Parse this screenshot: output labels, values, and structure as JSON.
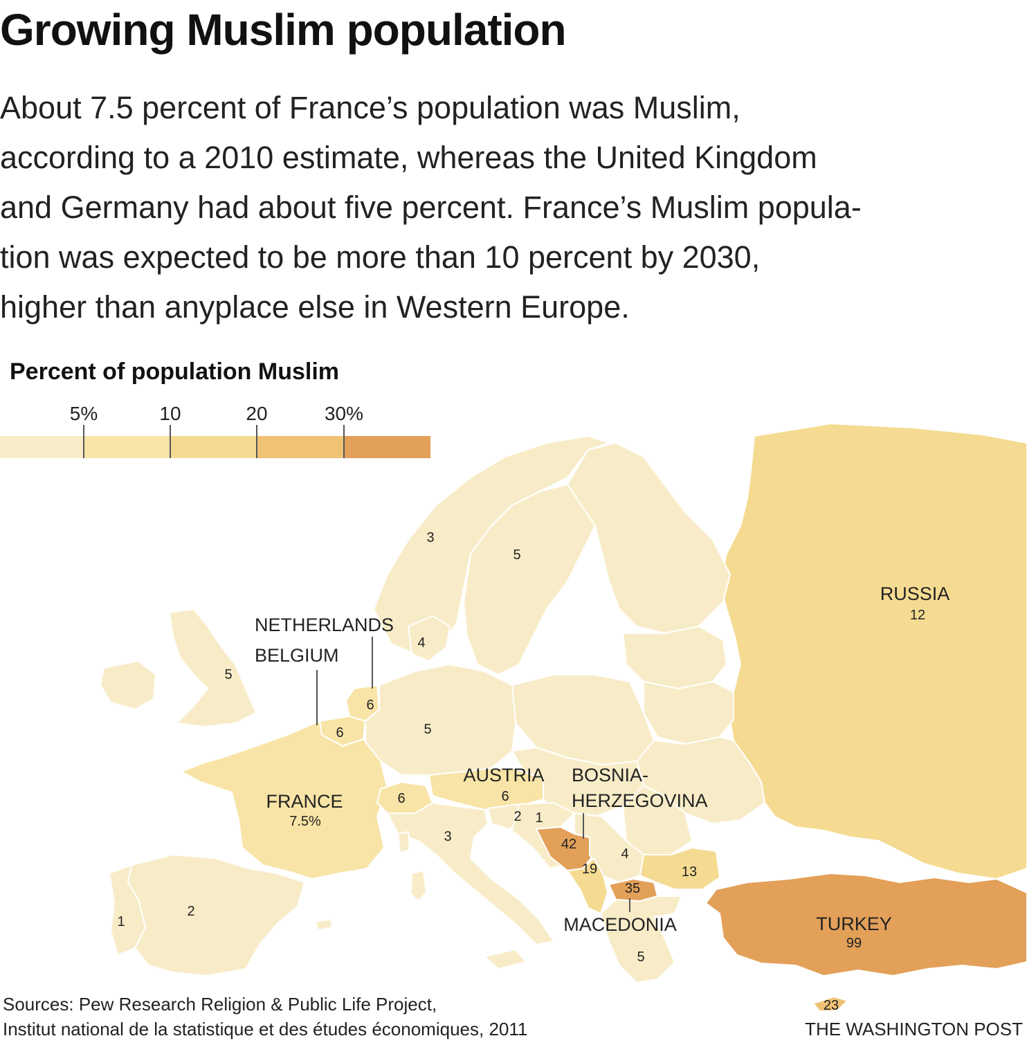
{
  "title": "Growing Muslim population",
  "dek": [
    "About 7.5 percent of France’s population was Muslim,",
    "according to a 2010 estimate, whereas the United Kingdom",
    "and Germany had about five percent. France’s Muslim popula-",
    "tion was expected to be more than 10 percent by 2030,",
    "higher than anyplace else in Western Europe."
  ],
  "legend": {
    "title": "Percent of population Muslim",
    "ticks": [
      "5%",
      "10",
      "20",
      "30%"
    ],
    "bins": [
      {
        "range": "0-5",
        "color": "#f8ecc8"
      },
      {
        "range": "5-10",
        "color": "#f8e4a6"
      },
      {
        "range": "10-20",
        "color": "#f5db91"
      },
      {
        "range": "20-30",
        "color": "#f0c274"
      },
      {
        "range": "30+",
        "color": "#e3a059"
      }
    ]
  },
  "colors": {
    "lowest": "#f8ecc8",
    "low": "#f8e4a6",
    "mid": "#f5db91",
    "high": "#f0c274",
    "highest": "#e3a059",
    "border": "#ffffff"
  },
  "countries": {
    "russia": {
      "name": "RUSSIA",
      "value": "12"
    },
    "france": {
      "name": "FRANCE",
      "value": "7.5%"
    },
    "austria": {
      "name": "AUSTRIA",
      "value": "6"
    },
    "bosnia": {
      "name_line1": "BOSNIA-",
      "name_line2": "HERZEGOVINA",
      "value": "42"
    },
    "macedonia": {
      "name": "MACEDONIA",
      "value": "35"
    },
    "turkey": {
      "name": "TURKEY",
      "value": "99"
    },
    "netherlands": {
      "name": "NETHERLANDS",
      "value": "6"
    },
    "belgium": {
      "name": "BELGIUM",
      "value": "6"
    },
    "norway": {
      "value": "3"
    },
    "sweden": {
      "value": "5"
    },
    "denmark": {
      "value": "4"
    },
    "uk": {
      "value": "5"
    },
    "germany": {
      "value": "5"
    },
    "switzerland": {
      "value": "6"
    },
    "italy": {
      "value": "3"
    },
    "slovenia": {
      "value": "2"
    },
    "croatia": {
      "value": "1"
    },
    "serbia": {
      "value": "4"
    },
    "montenegro": {
      "value": "19"
    },
    "bulgaria": {
      "value": "13"
    },
    "greece": {
      "value": "5"
    },
    "spain": {
      "value": "2"
    },
    "portugal": {
      "value": "1"
    },
    "cyprus": {
      "value": "23"
    }
  },
  "source": [
    "Sources: Pew Research Religion & Public Life Project,",
    "Institut national de la statistique et des études économiques, 2011"
  ],
  "credit": "THE WASHINGTON POST"
}
